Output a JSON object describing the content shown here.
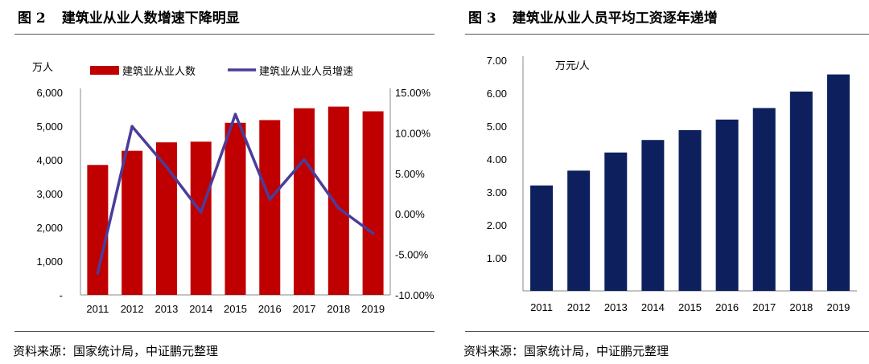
{
  "left": {
    "title_fig": "图 2",
    "title_text": "建筑业从业人数增速下降明显",
    "source": "资料来源：国家统计局，中证鹏元整理"
  },
  "right": {
    "title_fig": "图 3",
    "title_text": "建筑业从业人员平均工资逐年递增",
    "source": "资料来源：国家统计局，中证鹏元整理"
  },
  "chart_data": [
    {
      "type": "bar",
      "categories": [
        "2011",
        "2012",
        "2013",
        "2014",
        "2015",
        "2016",
        "2017",
        "2018",
        "2019"
      ],
      "unit_label": "万人",
      "series": [
        {
          "name": "建筑业从业人数",
          "type": "bar",
          "axis": "left",
          "color": "#c00000",
          "values": [
            3850,
            4270,
            4520,
            4540,
            5100,
            5180,
            5530,
            5580,
            5440
          ]
        },
        {
          "name": "建筑业从业人员增速",
          "type": "line",
          "axis": "right",
          "color": "#4a3d9a",
          "values": [
            -7.3,
            10.8,
            5.8,
            0.2,
            12.3,
            1.8,
            6.7,
            0.7,
            -2.4
          ]
        }
      ],
      "left_axis": {
        "ticks": [
          0,
          1000,
          2000,
          3000,
          4000,
          5000,
          6000
        ],
        "tick_labels": [
          "-",
          "1,000",
          "2,000",
          "3,000",
          "4,000",
          "5,000",
          "6,000"
        ],
        "ylim": [
          0,
          6000
        ]
      },
      "right_axis": {
        "ticks": [
          -10,
          -5,
          0,
          5,
          10,
          15
        ],
        "tick_labels": [
          "-10.00%",
          "-5.00%",
          "0.00%",
          "5.00%",
          "10.00%",
          "15.00%"
        ],
        "ylim": [
          -10,
          15
        ]
      },
      "grid": false,
      "legend_position": "top"
    },
    {
      "type": "bar",
      "categories": [
        "2011",
        "2012",
        "2013",
        "2014",
        "2015",
        "2016",
        "2017",
        "2018",
        "2019"
      ],
      "unit_label": "万元/人",
      "series": [
        {
          "name": "建筑业从业人员平均工资",
          "color": "#0d1f5c",
          "values": [
            3.2,
            3.65,
            4.2,
            4.58,
            4.88,
            5.2,
            5.55,
            6.05,
            6.57
          ]
        }
      ],
      "y_axis": {
        "ticks": [
          1,
          2,
          3,
          4,
          5,
          6,
          7
        ],
        "tick_labels": [
          "1.00",
          "2.00",
          "3.00",
          "4.00",
          "5.00",
          "6.00",
          "7.00"
        ],
        "ylim": [
          0,
          7
        ]
      },
      "grid": false
    }
  ]
}
